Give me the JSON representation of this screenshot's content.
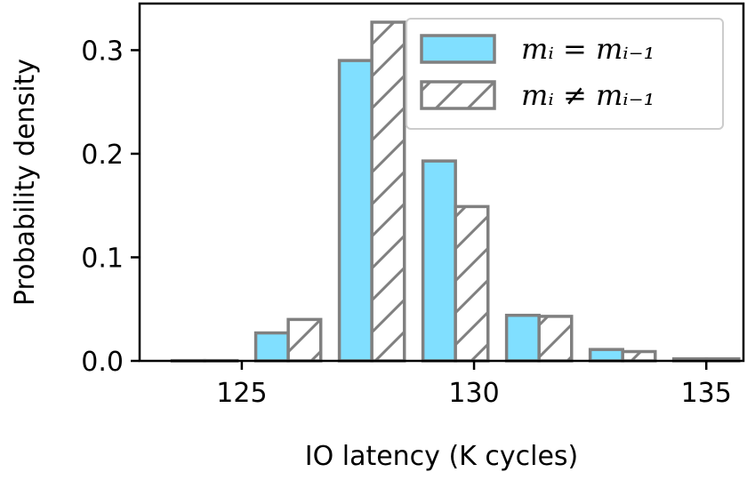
{
  "chart_data": {
    "type": "bar",
    "xlabel": "IO latency (K cycles)",
    "ylabel": "Probability density",
    "xlim": [
      122.8,
      135.8
    ],
    "ylim": [
      0,
      0.345
    ],
    "xticks": [
      125,
      130,
      135
    ],
    "yticks": [
      0.0,
      0.1,
      0.2,
      0.3
    ],
    "xtick_labels": [
      "125",
      "130",
      "135"
    ],
    "ytick_labels": [
      "0.0",
      "0.1",
      "0.2",
      "0.3"
    ],
    "bin_width": 0.7,
    "legend_position": "top-right",
    "series": [
      {
        "name": "m_i = m_{i-1}",
        "legend_label": "mᵢ = mᵢ₋₁",
        "fill": "#80dfff",
        "edge": "#808080",
        "hatch": false,
        "x": [
          123.5,
          125.3,
          127.1,
          128.9,
          130.7,
          132.5,
          134.3
        ],
        "values": [
          0.0003,
          0.027,
          0.29,
          0.193,
          0.044,
          0.011,
          0.002
        ]
      },
      {
        "name": "m_i != m_{i-1}",
        "legend_label": "mᵢ ≠ mᵢ₋₁",
        "fill": "#ffffff",
        "edge": "#808080",
        "hatch": true,
        "x": [
          124.2,
          126.0,
          127.8,
          129.6,
          131.4,
          133.2,
          135.0
        ],
        "values": [
          0.0003,
          0.04,
          0.327,
          0.149,
          0.043,
          0.009,
          0.002
        ]
      }
    ]
  }
}
